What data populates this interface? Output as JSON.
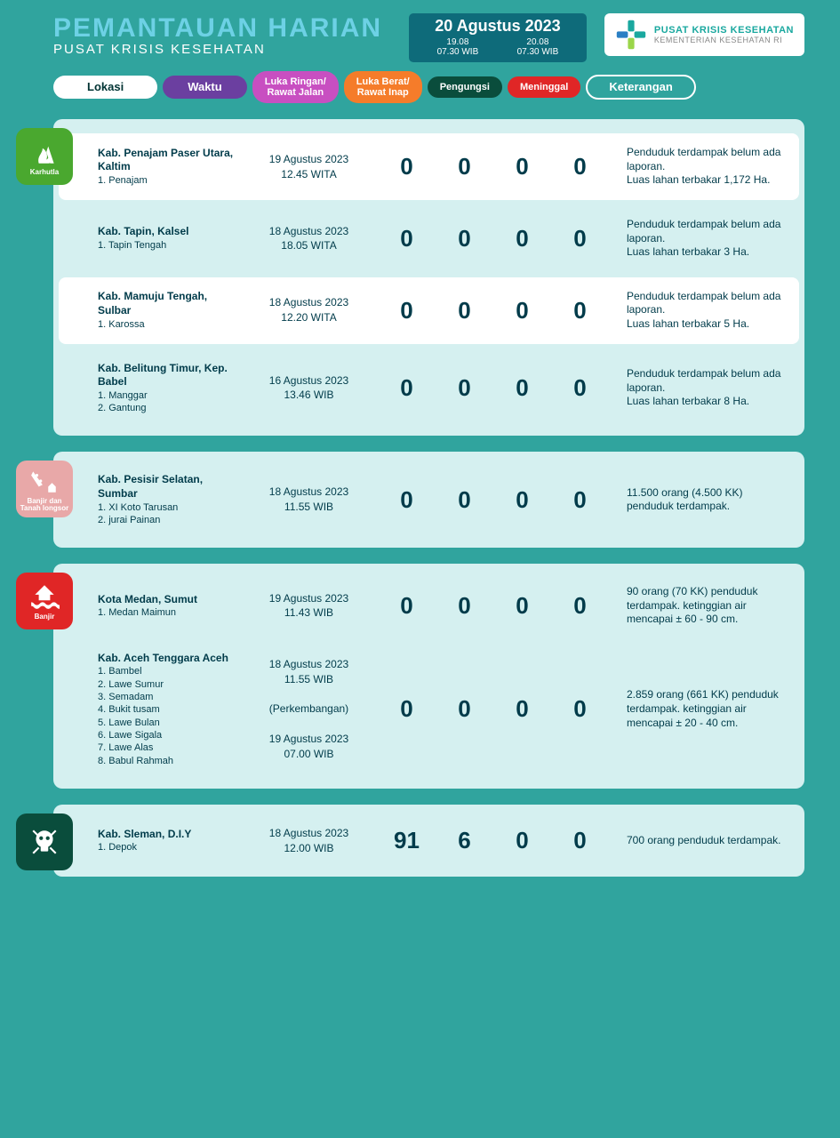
{
  "header": {
    "title": "PEMANTAUAN HARIAN",
    "subtitle": "PUSAT KRISIS KESEHATAN",
    "date_main": "20 Agustus 2023",
    "date_periods": [
      {
        "d": "19.08",
        "t": "07.30 WIB"
      },
      {
        "d": "20.08",
        "t": "07.30 WIB"
      }
    ],
    "org_line1": "PUSAT KRISIS KESEHATAN",
    "org_line2": "KEMENTERIAN KESEHATAN RI"
  },
  "tabs": {
    "lokasi": {
      "label": "Lokasi",
      "bg": "#ffffff",
      "fg": "#003333"
    },
    "waktu": {
      "label": "Waktu",
      "bg": "#6b3fa0"
    },
    "luka_ringan": {
      "label": "Luka Ringan/\nRawat Jalan",
      "bg": "#c84fc1"
    },
    "luka_berat": {
      "label": "Luka Berat/\nRawat Inap",
      "bg": "#f57c2a"
    },
    "pengungsi": {
      "label": "Pengungsi",
      "bg": "#0a4d3c"
    },
    "meninggal": {
      "label": "Meninggal",
      "bg": "#e02626"
    },
    "keterangan": {
      "label": "Keterangan"
    }
  },
  "sections": [
    {
      "badge": {
        "label": "Karhutla",
        "color": "#4aa82f",
        "icon": "fire"
      },
      "rows": [
        {
          "highlight": true,
          "loc_main": "Kab. Penajam Paser Utara, Kaltim",
          "loc_sub": "1. Penajam",
          "time": "19 Agustus 2023\n12.45 WITA",
          "n1": "0",
          "n2": "0",
          "n3": "0",
          "n4": "0",
          "desc": "Penduduk terdampak belum ada laporan.\nLuas lahan terbakar 1,172 Ha."
        },
        {
          "highlight": false,
          "loc_main": "Kab. Tapin, Kalsel",
          "loc_sub": "1. Tapin Tengah",
          "time": "18 Agustus 2023\n18.05 WITA",
          "n1": "0",
          "n2": "0",
          "n3": "0",
          "n4": "0",
          "desc": "Penduduk terdampak belum ada laporan.\nLuas lahan terbakar 3 Ha."
        },
        {
          "highlight": true,
          "loc_main": "Kab. Mamuju Tengah, Sulbar",
          "loc_sub": "1. Karossa",
          "time": "18 Agustus 2023\n12.20 WITA",
          "n1": "0",
          "n2": "0",
          "n3": "0",
          "n4": "0",
          "desc": "Penduduk terdampak belum ada laporan.\nLuas lahan terbakar 5 Ha."
        },
        {
          "highlight": false,
          "loc_main": "Kab. Belitung Timur, Kep. Babel",
          "loc_sub": "1. Manggar\n2. Gantung",
          "time": "16 Agustus 2023\n13.46 WIB",
          "n1": "0",
          "n2": "0",
          "n3": "0",
          "n4": "0",
          "desc": "Penduduk terdampak belum ada laporan.\nLuas lahan terbakar 8 Ha."
        }
      ]
    },
    {
      "badge": {
        "label": "Banjir dan\nTanah longsor",
        "color": "#e8a8a8",
        "icon": "landslide"
      },
      "rows": [
        {
          "highlight": false,
          "loc_main": "Kab. Pesisir Selatan, Sumbar",
          "loc_sub": "1. XI Koto Tarusan\n2. jurai Painan",
          "time": "18 Agustus 2023\n11.55 WIB",
          "n1": "0",
          "n2": "0",
          "n3": "0",
          "n4": "0",
          "desc": "11.500 orang (4.500 KK) penduduk terdampak."
        }
      ]
    },
    {
      "badge": {
        "label": "Banjir",
        "color": "#e02626",
        "icon": "flood"
      },
      "rows": [
        {
          "highlight": false,
          "loc_main": "Kota Medan, Sumut",
          "loc_sub": "1. Medan Maimun",
          "time": "19 Agustus 2023\n11.43 WIB",
          "n1": "0",
          "n2": "0",
          "n3": "0",
          "n4": "0",
          "desc": "90 orang (70 KK) penduduk terdampak. ketinggian air mencapai ± 60 - 90 cm."
        },
        {
          "highlight": false,
          "loc_main": "Kab. Aceh Tenggara Aceh",
          "loc_sub": "1. Bambel\n2. Lawe Sumur\n3. Semadam\n4. Bukit tusam\n5. Lawe Bulan\n6. Lawe Sigala\n7. Lawe Alas\n8. Babul Rahmah",
          "time": "18 Agustus 2023\n11.55 WIB\n\n(Perkembangan)\n\n19 Agustus 2023\n07.00 WIB",
          "n1": "0",
          "n2": "0",
          "n3": "0",
          "n4": "0",
          "desc": "2.859 orang (661 KK) penduduk terdampak. ketinggian air mencapai ± 20 - 40 cm."
        }
      ]
    },
    {
      "badge": {
        "label": "",
        "color": "#0a4d3c",
        "icon": "skull"
      },
      "rows": [
        {
          "highlight": false,
          "loc_main": "Kab. Sleman, D.I.Y",
          "loc_sub": "1. Depok",
          "time": "18 Agustus 2023\n12.00 WIB",
          "n1": "91",
          "n2": "6",
          "n3": "0",
          "n4": "0",
          "desc": "700 orang penduduk terdampak."
        }
      ]
    }
  ]
}
